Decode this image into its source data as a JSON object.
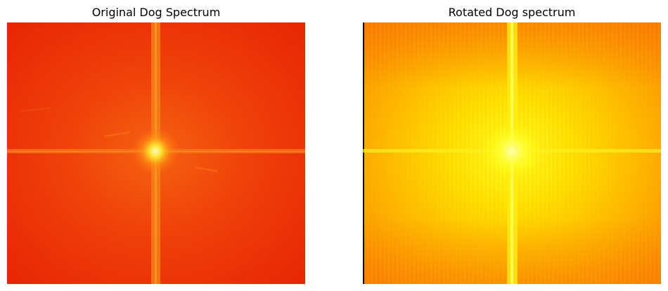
{
  "figure": {
    "panels": [
      {
        "title": "Original Dog Spectrum",
        "colormap": "hot",
        "base_color": "#f23a06",
        "center_color": "#fffb9a",
        "axis_color": "#f88a14"
      },
      {
        "title": "Rotated Dog spectrum",
        "colormap": "hot",
        "base_color": "#fda107",
        "center_color": "#ffff30",
        "axis_color": "#ffee00"
      }
    ]
  }
}
